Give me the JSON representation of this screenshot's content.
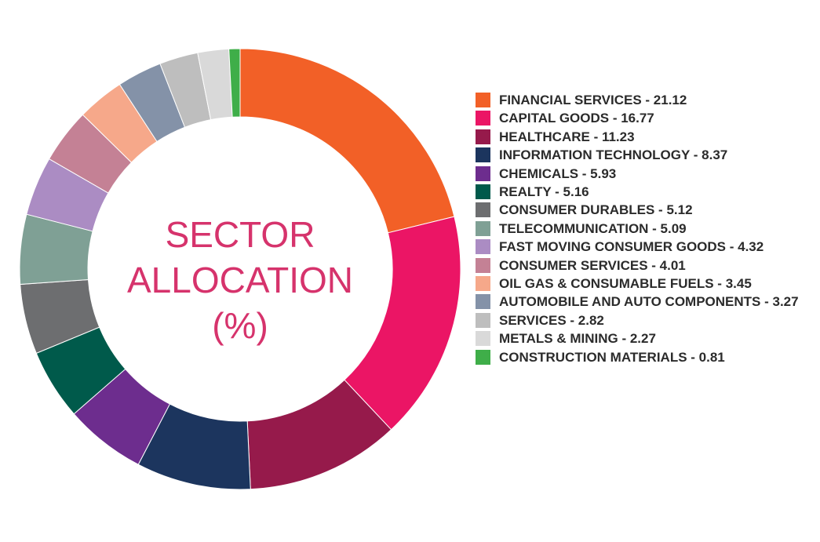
{
  "chart_data": {
    "type": "pie",
    "donut": true,
    "title_lines": [
      "SECTOR",
      "ALLOCATION",
      "(%)"
    ],
    "legend_position": "right",
    "slices": [
      {
        "label": "FINANCIAL SERVICES - 21.12",
        "value": 21.12,
        "color": "#f26027"
      },
      {
        "label": "CAPITAL GOODS - 16.77",
        "value": 16.77,
        "color": "#eb1565"
      },
      {
        "label": "HEALTHCARE - 11.23",
        "value": 11.23,
        "color": "#961a4b"
      },
      {
        "label": "INFORMATION TECHNOLOGY - 8.37",
        "value": 8.37,
        "color": "#1c355e"
      },
      {
        "label": "CHEMICALS - 5.93",
        "value": 5.93,
        "color": "#6d2d8e"
      },
      {
        "label": "REALTY - 5.16",
        "value": 5.16,
        "color": "#005a4b"
      },
      {
        "label": "CONSUMER DURABLES - 5.12",
        "value": 5.12,
        "color": "#6d6e70"
      },
      {
        "label": "TELECOMMUNICATION - 5.09",
        "value": 5.09,
        "color": "#7fa095"
      },
      {
        "label": "FAST MOVING CONSUMER GOODS - 4.32",
        "value": 4.32,
        "color": "#ab8cc3"
      },
      {
        "label": "CONSUMER SERVICES - 4.01",
        "value": 4.01,
        "color": "#c48195"
      },
      {
        "label": "OIL GAS & CONSUMABLE FUELS - 3.45",
        "value": 3.45,
        "color": "#f6a88a"
      },
      {
        "label": "AUTOMOBILE AND AUTO COMPONENTS - 3.27",
        "value": 3.27,
        "color": "#8492a8"
      },
      {
        "label": "SERVICES - 2.82",
        "value": 2.82,
        "color": "#bebebe"
      },
      {
        "label": "METALS & MINING - 2.27",
        "value": 2.27,
        "color": "#d9d9d9"
      },
      {
        "label": "CONSTRUCTION MATERIALS - 0.81",
        "value": 0.81,
        "color": "#3fae49"
      }
    ]
  }
}
